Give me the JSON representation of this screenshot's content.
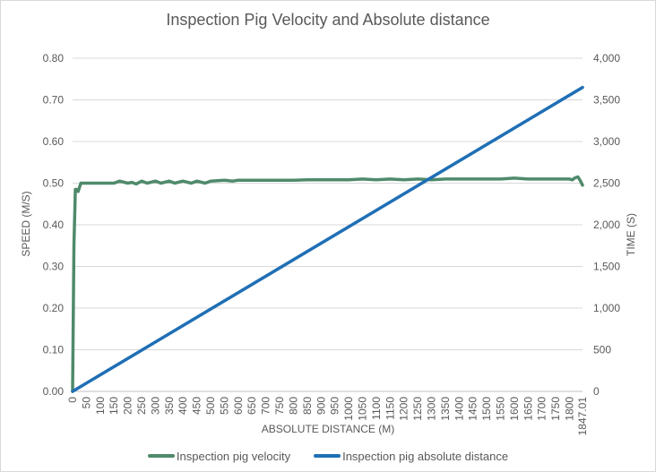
{
  "chart_data": {
    "type": "line",
    "title": "Inspection Pig Velocity and Absolute distance",
    "xlabel": "ABSOLUTE DISTANCE (M)",
    "ylabel_left": "SPEED (M/S)",
    "ylabel_right": "TIME  (S)",
    "x_ticks": [
      "0",
      "50",
      "100",
      "150",
      "200",
      "250",
      "300",
      "350",
      "400",
      "450",
      "500",
      "550",
      "600",
      "650",
      "700",
      "750",
      "800",
      "850",
      "900",
      "950",
      "1000",
      "1050",
      "1100",
      "1150",
      "1200",
      "1250",
      "1300",
      "1350",
      "1400",
      "1450",
      "1500",
      "1550",
      "1600",
      "1650",
      "1700",
      "1750",
      "1800",
      "1847.01"
    ],
    "xlim": [
      0,
      1847.01
    ],
    "ylim_left": [
      0,
      0.8
    ],
    "ylim_right": [
      0,
      4000
    ],
    "y_ticks_left": [
      "0.00",
      "0.10",
      "0.20",
      "0.30",
      "0.40",
      "0.50",
      "0.60",
      "0.70",
      "0.80"
    ],
    "y_ticks_right": [
      "0",
      "500",
      "1,000",
      "1,500",
      "2,000",
      "2,500",
      "3,000",
      "3,500",
      "4,000"
    ],
    "grid": true,
    "legend_position": "bottom",
    "series": [
      {
        "name": "Inspection pig velocity",
        "axis": "left",
        "color": "#4f8a6b",
        "x": [
          0,
          5,
          10,
          15,
          20,
          25,
          30,
          50,
          100,
          150,
          170,
          200,
          215,
          230,
          250,
          270,
          300,
          320,
          350,
          370,
          400,
          430,
          450,
          480,
          500,
          550,
          580,
          600,
          650,
          700,
          750,
          800,
          850,
          900,
          950,
          1000,
          1050,
          1100,
          1150,
          1200,
          1250,
          1300,
          1350,
          1400,
          1450,
          1500,
          1550,
          1600,
          1650,
          1700,
          1750,
          1800,
          1810,
          1820,
          1830,
          1840,
          1847.01
        ],
        "y": [
          0.0,
          0.35,
          0.485,
          0.485,
          0.48,
          0.49,
          0.5,
          0.5,
          0.5,
          0.5,
          0.505,
          0.5,
          0.502,
          0.498,
          0.505,
          0.5,
          0.505,
          0.5,
          0.505,
          0.5,
          0.505,
          0.5,
          0.505,
          0.5,
          0.505,
          0.507,
          0.505,
          0.507,
          0.507,
          0.507,
          0.507,
          0.507,
          0.508,
          0.508,
          0.508,
          0.508,
          0.51,
          0.508,
          0.51,
          0.508,
          0.51,
          0.508,
          0.51,
          0.51,
          0.51,
          0.51,
          0.51,
          0.512,
          0.51,
          0.51,
          0.51,
          0.51,
          0.508,
          0.513,
          0.515,
          0.505,
          0.495
        ]
      },
      {
        "name": "Inspection pig absolute distance",
        "axis": "right",
        "color": "#1f6fb5",
        "x": [
          0,
          1847.01
        ],
        "y": [
          0,
          3650
        ]
      }
    ]
  }
}
